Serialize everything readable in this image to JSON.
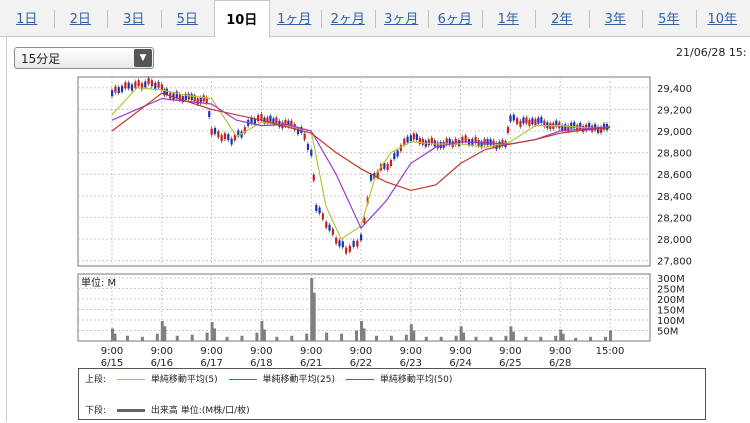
{
  "tabs": [
    {
      "label": "1日",
      "active": false
    },
    {
      "label": "2日",
      "active": false
    },
    {
      "label": "3日",
      "active": false
    },
    {
      "label": "5日",
      "active": false
    },
    {
      "label": "10日",
      "active": true
    },
    {
      "label": "1ヶ月",
      "active": false
    },
    {
      "label": "2ヶ月",
      "active": false
    },
    {
      "label": "3ヶ月",
      "active": false
    },
    {
      "label": "6ヶ月",
      "active": false
    },
    {
      "label": "1年",
      "active": false
    },
    {
      "label": "2年",
      "active": false
    },
    {
      "label": "3年",
      "active": false
    },
    {
      "label": "5年",
      "active": false
    },
    {
      "label": "10年",
      "active": false
    }
  ],
  "interval_select": {
    "value": "15分足"
  },
  "datetime": "21/06/28 15:",
  "colors": {
    "up": "#d11a1a",
    "down": "#1733b5",
    "ma5": "#b8c43c",
    "ma25": "#9b3cc8",
    "ma50": "#c0392b",
    "volume": "#808080",
    "grid": "#c8c8c8"
  },
  "chart_data": [
    {
      "type": "line",
      "title": "",
      "y_ticks": [
        "29,400",
        "29,200",
        "29,000",
        "28,800",
        "28,600",
        "28,400",
        "28,200",
        "28,000",
        "27,800"
      ],
      "ylim": [
        27750,
        29500
      ],
      "x_ticks": [
        {
          "time": "9:00",
          "date": "6/15"
        },
        {
          "time": "9:00",
          "date": "6/16"
        },
        {
          "time": "9:00",
          "date": "6/17"
        },
        {
          "time": "9:00",
          "date": "6/18"
        },
        {
          "time": "9:00",
          "date": "6/21"
        },
        {
          "time": "9:00",
          "date": "6/22"
        },
        {
          "time": "9:00",
          "date": "6/23"
        },
        {
          "time": "9:00",
          "date": "6/24"
        },
        {
          "time": "9:00",
          "date": "6/25"
        },
        {
          "time": "9:00",
          "date": "6/28"
        },
        {
          "time": "15:00",
          "date": ""
        }
      ],
      "series": [
        {
          "name": "単純移動平均(5)",
          "x": [
            0,
            0.5,
            1,
            1.5,
            2,
            2.5,
            3,
            3.5,
            4,
            4.3,
            4.6,
            5,
            5.3,
            5.6,
            6,
            6.5,
            7,
            7.5,
            8,
            8.5,
            9,
            9.5,
            10
          ],
          "values": [
            29150,
            29400,
            29380,
            29330,
            29300,
            28950,
            29080,
            29050,
            29000,
            28300,
            28000,
            28120,
            28600,
            28800,
            28900,
            28880,
            28880,
            28850,
            28900,
            29050,
            29050,
            29030,
            29030
          ]
        },
        {
          "name": "単純移動平均(25)",
          "x": [
            0,
            1,
            2,
            2.5,
            3,
            3.5,
            4,
            4.5,
            5,
            5.5,
            6,
            6.5,
            7,
            7.5,
            8,
            8.5,
            9,
            9.5,
            10
          ],
          "values": [
            29100,
            29300,
            29250,
            29100,
            29050,
            29060,
            29000,
            28600,
            28100,
            28350,
            28700,
            28850,
            28900,
            28890,
            28880,
            28920,
            29000,
            29020,
            29040
          ]
        },
        {
          "name": "単純移動平均(50)",
          "x": [
            0,
            1,
            2,
            3,
            4,
            4.5,
            5,
            5.5,
            6,
            6.5,
            7,
            7.5,
            8,
            8.5,
            9,
            9.5,
            10
          ],
          "values": [
            29000,
            29350,
            29200,
            29100,
            28980,
            28800,
            28650,
            28530,
            28450,
            28500,
            28700,
            28830,
            28880,
            28920,
            28980,
            29010,
            29030
          ]
        },
        {
          "name": "price",
          "x": [
            0,
            0.2,
            0.4,
            0.6,
            0.8,
            1,
            1.1,
            1.3,
            1.6,
            1.9,
            2,
            2.2,
            2.4,
            2.6,
            2.8,
            3,
            3.3,
            3.6,
            3.8,
            4,
            4.1,
            4.3,
            4.5,
            4.7,
            4.85,
            5,
            5.2,
            5.4,
            5.6,
            5.8,
            6,
            6.3,
            6.6,
            6.9,
            7.1,
            7.3,
            7.6,
            7.9,
            8,
            8.2,
            8.5,
            8.8,
            9.1,
            9.4,
            9.7,
            10
          ],
          "values": [
            29350,
            29400,
            29420,
            29430,
            29450,
            29400,
            29350,
            29320,
            29300,
            29280,
            29000,
            28950,
            28920,
            28980,
            29100,
            29120,
            29080,
            29050,
            29000,
            28800,
            28300,
            28150,
            28000,
            27900,
            27950,
            28000,
            28550,
            28650,
            28700,
            28850,
            28950,
            28900,
            28880,
            28900,
            28920,
            28900,
            28880,
            28870,
            29120,
            29080,
            29100,
            29060,
            29040,
            29040,
            29020,
            29030
          ]
        }
      ]
    },
    {
      "type": "bar",
      "title": "",
      "label": "単位: M",
      "y_ticks": [
        "300M",
        "250M",
        "200M",
        "150M",
        "100M",
        "50M"
      ],
      "ylim": [
        0,
        300
      ],
      "series": [
        {
          "name": "出来高",
          "x": [
            0,
            0.05,
            0.3,
            0.6,
            0.9,
            1,
            1.05,
            1.3,
            1.6,
            1.9,
            2,
            2.05,
            2.3,
            2.6,
            2.9,
            3,
            3.05,
            3.3,
            3.6,
            3.9,
            4,
            4.05,
            4.3,
            4.6,
            4.9,
            5,
            5.05,
            5.3,
            5.6,
            5.9,
            6,
            6.05,
            6.3,
            6.6,
            6.9,
            7,
            7.05,
            7.3,
            7.6,
            7.9,
            8,
            8.05,
            8.3,
            8.6,
            8.9,
            9,
            9.05,
            9.3,
            9.6,
            9.9,
            10
          ],
          "values": [
            60,
            35,
            25,
            20,
            35,
            95,
            70,
            25,
            30,
            40,
            90,
            60,
            20,
            25,
            40,
            95,
            55,
            20,
            25,
            35,
            300,
            230,
            40,
            35,
            50,
            95,
            60,
            25,
            25,
            30,
            80,
            50,
            20,
            20,
            25,
            70,
            40,
            20,
            20,
            25,
            70,
            45,
            20,
            20,
            25,
            55,
            35,
            15,
            20,
            20,
            50
          ]
        }
      ]
    }
  ],
  "legend": {
    "upper_label": "上段:",
    "ma5": "単純移動平均(5)",
    "ma25": "単純移動平均(25)",
    "ma50": "単純移動平均(50)",
    "lower_label": "下段:",
    "volume": "出来高 単位:(M株/口/枚)"
  }
}
